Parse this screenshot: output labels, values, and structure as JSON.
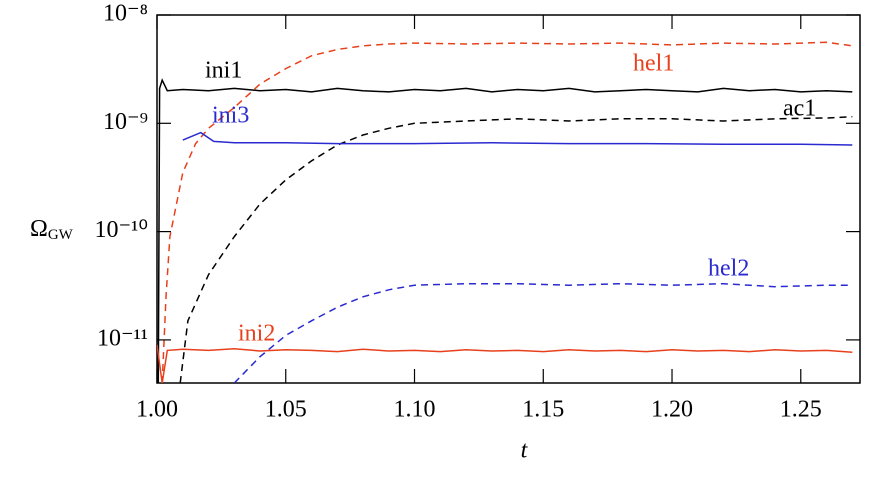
{
  "chart_data": {
    "type": "line",
    "x_label": "t",
    "y_label": "Ω",
    "y_label_sub": "GW",
    "log_y": true,
    "xlim": [
      1.0,
      1.273
    ],
    "xticks": [
      {
        "value": 1.0,
        "label": "1.00"
      },
      1.05,
      {
        "value": 1.1,
        "label": "1.10"
      },
      1.15,
      {
        "value": 1.2,
        "label": "1.20"
      },
      1.25
    ],
    "ylim": [
      4e-12,
      1e-08
    ],
    "yticks": [
      {
        "value": 1e-08,
        "label": "10⁻⁸"
      },
      {
        "value": 1e-09,
        "label": "10⁻⁹"
      },
      {
        "value": 1e-10,
        "label": "10⁻¹⁰"
      },
      {
        "value": 1e-11,
        "label": "10⁻¹¹"
      }
    ],
    "series": [
      {
        "name": "ini1",
        "color": "#000000",
        "dashed": false,
        "x": [
          1.0005,
          1.001,
          1.002,
          1.004,
          1.01,
          1.02,
          1.03,
          1.04,
          1.05,
          1.06,
          1.07,
          1.08,
          1.09,
          1.1,
          1.11,
          1.12,
          1.13,
          1.14,
          1.15,
          1.16,
          1.17,
          1.18,
          1.19,
          1.2,
          1.21,
          1.22,
          1.23,
          1.24,
          1.25,
          1.26,
          1.27
        ],
        "values": [
          4e-12,
          2.1e-09,
          2.5e-09,
          2e-09,
          2.05e-09,
          2e-09,
          2.1e-09,
          2e-09,
          2.05e-09,
          1.95e-09,
          2.1e-09,
          2e-09,
          1.95e-09,
          2.05e-09,
          2e-09,
          2.1e-09,
          1.95e-09,
          2.05e-09,
          2e-09,
          2.1e-09,
          1.95e-09,
          2e-09,
          2.05e-09,
          2e-09,
          1.95e-09,
          2.1e-09,
          2e-09,
          2.05e-09,
          1.95e-09,
          2e-09,
          1.95e-09
        ]
      },
      {
        "name": "hel1",
        "color": "#e8401c",
        "dashed": true,
        "x": [
          1.002,
          1.0035,
          1.005,
          1.01,
          1.015,
          1.02,
          1.03,
          1.04,
          1.05,
          1.06,
          1.07,
          1.08,
          1.09,
          1.1,
          1.12,
          1.14,
          1.16,
          1.18,
          1.2,
          1.22,
          1.24,
          1.26,
          1.27
        ],
        "values": [
          4e-12,
          2.5e-11,
          9e-11,
          3.5e-10,
          6.5e-10,
          9e-10,
          1.4e-09,
          2.3e-09,
          3.2e-09,
          4.2e-09,
          4.8e-09,
          5.2e-09,
          5.4e-09,
          5.5e-09,
          5.4e-09,
          5.5e-09,
          5.4e-09,
          5.5e-09,
          5.3e-09,
          5.5e-09,
          5.4e-09,
          5.6e-09,
          5.2e-09
        ]
      },
      {
        "name": "ac1",
        "color": "#000000",
        "dashed": true,
        "x": [
          1.009,
          1.012,
          1.02,
          1.03,
          1.04,
          1.05,
          1.06,
          1.07,
          1.08,
          1.09,
          1.1,
          1.12,
          1.14,
          1.16,
          1.18,
          1.2,
          1.22,
          1.24,
          1.26,
          1.27
        ],
        "values": [
          4e-12,
          1.5e-11,
          4e-11,
          9e-11,
          1.8e-10,
          3e-10,
          4.5e-10,
          6.3e-10,
          7.8e-10,
          9e-10,
          1e-09,
          1.05e-09,
          1.1e-09,
          1.05e-09,
          1.1e-09,
          1.1e-09,
          1.05e-09,
          1.1e-09,
          1.12e-09,
          1.15e-09
        ]
      },
      {
        "name": "ini3",
        "color": "#2a2ad0",
        "dashed": false,
        "x": [
          1.01,
          1.017,
          1.022,
          1.03,
          1.05,
          1.07,
          1.1,
          1.13,
          1.16,
          1.19,
          1.22,
          1.25,
          1.27
        ],
        "values": [
          7e-10,
          8.2e-10,
          6.8e-10,
          6.6e-10,
          6.6e-10,
          6.5e-10,
          6.5e-10,
          6.6e-10,
          6.5e-10,
          6.5e-10,
          6.4e-10,
          6.4e-10,
          6.3e-10
        ]
      },
      {
        "name": "hel2",
        "color": "#2a2ad0",
        "dashed": true,
        "x": [
          1.03,
          1.04,
          1.05,
          1.06,
          1.07,
          1.08,
          1.09,
          1.1,
          1.12,
          1.14,
          1.16,
          1.18,
          1.2,
          1.22,
          1.24,
          1.26,
          1.27
        ],
        "values": [
          4e-12,
          7e-12,
          1.1e-11,
          1.5e-11,
          2e-11,
          2.5e-11,
          2.9e-11,
          3.2e-11,
          3.3e-11,
          3.3e-11,
          3.2e-11,
          3.3e-11,
          3.2e-11,
          3.3e-11,
          3.1e-11,
          3.2e-11,
          3.2e-11
        ]
      },
      {
        "name": "ini2",
        "color": "#e8401c",
        "dashed": false,
        "x": [
          1.0,
          1.002,
          1.004,
          1.01,
          1.02,
          1.03,
          1.04,
          1.05,
          1.06,
          1.07,
          1.08,
          1.09,
          1.1,
          1.11,
          1.12,
          1.13,
          1.14,
          1.15,
          1.16,
          1.17,
          1.18,
          1.19,
          1.2,
          1.21,
          1.22,
          1.23,
          1.24,
          1.25,
          1.26,
          1.27
        ],
        "values": [
          9e-12,
          4e-12,
          8e-12,
          8.2e-12,
          8e-12,
          8.3e-12,
          7.9e-12,
          8.1e-12,
          8e-12,
          7.8e-12,
          8.2e-12,
          7.9e-12,
          8e-12,
          7.8e-12,
          8.1e-12,
          7.9e-12,
          8e-12,
          7.8e-12,
          8.1e-12,
          7.9e-12,
          8e-12,
          7.8e-12,
          8.1e-12,
          7.9e-12,
          8e-12,
          7.8e-12,
          8.1e-12,
          7.9e-12,
          8e-12,
          7.7e-12
        ]
      }
    ]
  }
}
